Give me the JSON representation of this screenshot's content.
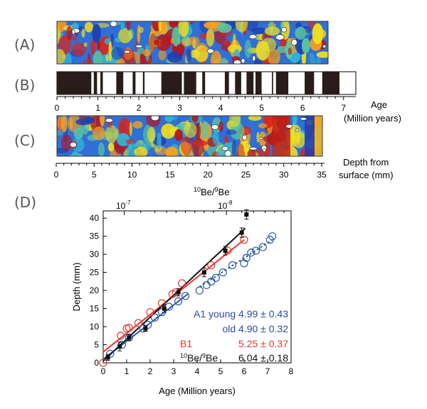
{
  "panels": {
    "a": "(A)",
    "b": "(B)",
    "c": "(C)",
    "d": "(D)"
  },
  "panel_b_axis": {
    "ticks": [
      "0",
      "1",
      "2",
      "3",
      "4",
      "5",
      "6",
      "7"
    ],
    "title_line1": "Age",
    "title_line2": "(Million years)",
    "black_intervals": [
      [
        0,
        0.84
      ],
      [
        0.9,
        0.98
      ],
      [
        1.06,
        1.12
      ],
      [
        1.45,
        1.62
      ],
      [
        1.85,
        1.92
      ],
      [
        2.1,
        2.14
      ],
      [
        2.55,
        3.05
      ],
      [
        3.1,
        3.4
      ],
      [
        3.55,
        3.62
      ],
      [
        4.1,
        4.2
      ],
      [
        4.35,
        4.5
      ],
      [
        4.63,
        4.8
      ],
      [
        4.85,
        5.0
      ],
      [
        5.25,
        5.28
      ],
      [
        5.35,
        5.65
      ],
      [
        6.05,
        6.28
      ],
      [
        6.48,
        6.9
      ]
    ],
    "range": [
      0,
      7.3
    ]
  },
  "panel_c_axis": {
    "ticks": [
      "0",
      "5",
      "10",
      "15",
      "20",
      "25",
      "30",
      "35"
    ],
    "title_line1": "Depth from",
    "title_line2": "surface (mm)"
  },
  "colors": {
    "black": "#111111",
    "red": "#e8362a",
    "blue": "#2d5aa8",
    "legend_blue": "#2d4aa0"
  },
  "chart_data": {
    "type": "scatter",
    "title": "",
    "xlabel": "Age (Million years)",
    "ylabel": "Depth (mm)",
    "xlim": [
      0,
      8
    ],
    "ylim": [
      0,
      42
    ],
    "x_ticks": [
      "0",
      "1",
      "2",
      "3",
      "4",
      "5",
      "6",
      "7",
      "8"
    ],
    "y_ticks": [
      "0",
      "5",
      "10",
      "15",
      "20",
      "25",
      "30",
      "35",
      "40"
    ],
    "top_axis": {
      "label_prefix": "10",
      "label_mid": "Be/",
      "label_mid_sup": "9",
      "label_end": "Be",
      "ticks": [
        {
          "text": "10",
          "exp": "-7",
          "x": 0.9
        },
        {
          "text": "10",
          "exp": "-8",
          "x": 5.25
        }
      ]
    },
    "series": [
      {
        "name": "A1 young",
        "color": "#2d5aa8",
        "marker": "open-circle",
        "points": [
          [
            0.3,
            2.5
          ],
          [
            0.8,
            5
          ],
          [
            1.1,
            7
          ],
          [
            1.7,
            9.5
          ],
          [
            1.9,
            10.5
          ],
          [
            2.2,
            12.5
          ],
          [
            2.5,
            14
          ],
          [
            2.8,
            15.5
          ],
          [
            3.2,
            17
          ],
          [
            3.5,
            18.5
          ]
        ],
        "fit": [
          [
            0,
            1
          ],
          [
            3.6,
            19
          ]
        ]
      },
      {
        "name": "old",
        "color": "#2d5aa8",
        "marker": "open-circle",
        "points": [
          [
            4.1,
            20
          ],
          [
            4.4,
            21.5
          ],
          [
            4.6,
            22.5
          ],
          [
            4.8,
            23.5
          ],
          [
            5.1,
            25
          ],
          [
            5.5,
            27
          ],
          [
            6.0,
            27.5
          ],
          [
            6.1,
            29
          ],
          [
            6.3,
            30.5
          ],
          [
            6.5,
            31
          ],
          [
            6.8,
            32
          ],
          [
            7.1,
            34
          ],
          [
            7.2,
            35
          ]
        ],
        "fit": [
          [
            4.1,
            21
          ],
          [
            7.2,
            34
          ]
        ],
        "dashed": true
      },
      {
        "name": "B1",
        "color": "#e8362a",
        "marker": "open-circle",
        "points": [
          [
            0,
            0
          ],
          [
            0.75,
            7.5
          ],
          [
            1.0,
            9.5
          ],
          [
            1.1,
            9.7
          ],
          [
            1.5,
            11
          ],
          [
            2.0,
            14
          ],
          [
            2.5,
            16.5
          ],
          [
            2.95,
            19
          ],
          [
            3.1,
            19.5
          ],
          [
            3.35,
            22
          ],
          [
            4.6,
            27
          ],
          [
            5.3,
            31
          ],
          [
            6.0,
            34
          ]
        ],
        "fit": [
          [
            0,
            3
          ],
          [
            6.0,
            34
          ]
        ]
      },
      {
        "name": "10Be/9Be",
        "color": "#111111",
        "marker": "filled-square",
        "points": [
          [
            0.2,
            1.5
          ],
          [
            0.7,
            4.5
          ],
          [
            1.1,
            7
          ],
          [
            1.8,
            9.5
          ],
          [
            2.6,
            15
          ],
          [
            3.2,
            19.5
          ],
          [
            4.3,
            25
          ],
          [
            5.2,
            31
          ],
          [
            5.9,
            36
          ],
          [
            6.1,
            41
          ]
        ],
        "errors": [
          0.8,
          1.2,
          0.8,
          0.8,
          1.0,
          1.0,
          1.2,
          1.2,
          1.3,
          1.3
        ],
        "fit": [
          [
            0,
            0.5
          ],
          [
            6.05,
            37.2
          ]
        ]
      }
    ],
    "legend": [
      {
        "label": "A1 young 4.99 ± 0.43",
        "color": "#2d4aa0"
      },
      {
        "label": "old 4.90 ± 0.32",
        "color": "#2d4aa0"
      },
      {
        "label_a": "B1",
        "label_b": "5.25 ± 0.37",
        "color": "#e8362a"
      },
      {
        "label_sup1": "10",
        "label_mid": "Be/",
        "label_sup2": "9",
        "label_end": "Be",
        "value": "6.04 ± 0.18",
        "color": "#111111"
      }
    ]
  }
}
